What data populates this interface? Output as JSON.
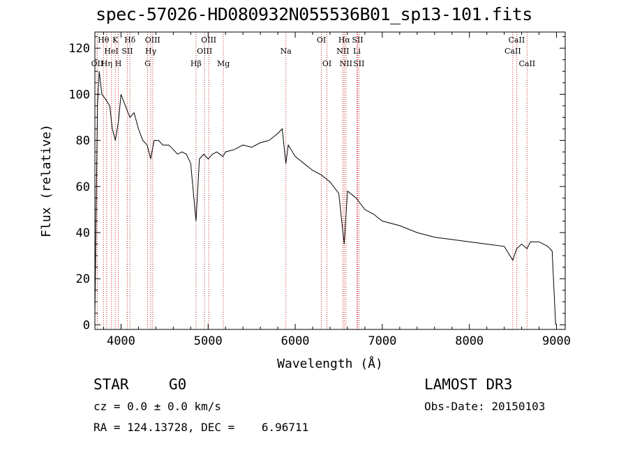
{
  "title": "spec-57026-HD080932N055536B01_sp13-101.fits",
  "info": {
    "class": "STAR",
    "subclass": "G0",
    "survey": "LAMOST DR3",
    "cz": "cz = 0.0 ± 0.0 km/s",
    "obs_date": "Obs-Date: 20150103",
    "radec": "RA = 124.13728, DEC =    6.96711"
  },
  "colors": {
    "line_marker": "#cc2222",
    "spectrum": "#000000",
    "axes": "#000000"
  },
  "chart_data": {
    "type": "line",
    "xlabel": "Wavelength (Å)",
    "ylabel": "Flux (relative)",
    "xlim": [
      3700,
      9100
    ],
    "ylim": [
      -2,
      127
    ],
    "xticks": [
      4000,
      5000,
      6000,
      7000,
      8000,
      9000
    ],
    "yticks": [
      0,
      20,
      40,
      60,
      80,
      100,
      120
    ],
    "grid": false,
    "series": [
      {
        "x": [
          3700,
          3730,
          3750,
          3780,
          3820,
          3870,
          3900,
          3935,
          3970,
          4000,
          4050,
          4101,
          4150,
          4200,
          4250,
          4300,
          4340,
          4380,
          4430,
          4480,
          4550,
          4600,
          4650,
          4700,
          4750,
          4800,
          4861,
          4900,
          4950,
          5000,
          5050,
          5100,
          5170,
          5200,
          5300,
          5400,
          5500,
          5600,
          5700,
          5800,
          5850,
          5893,
          5920,
          6000,
          6100,
          6200,
          6300,
          6400,
          6500,
          6563,
          6600,
          6700,
          6800,
          6900,
          7000,
          7200,
          7400,
          7600,
          7800,
          8000,
          8200,
          8400,
          8498,
          8542,
          8600,
          8662,
          8700,
          8800,
          8900,
          8950,
          8990
        ],
        "y": [
          5,
          95,
          110,
          100,
          98,
          95,
          85,
          80,
          88,
          100,
          95,
          90,
          92,
          85,
          80,
          78,
          72,
          80,
          80,
          78,
          78,
          76,
          74,
          75,
          74,
          70,
          45,
          72,
          74,
          72,
          74,
          75,
          73,
          75,
          76,
          78,
          77,
          79,
          80,
          83,
          85,
          70,
          78,
          73,
          70,
          67,
          65,
          62,
          57,
          35,
          58,
          55,
          50,
          48,
          45,
          43,
          40,
          38,
          37,
          36,
          35,
          34,
          28,
          33,
          35,
          33,
          36,
          36,
          34,
          32,
          0
        ]
      }
    ],
    "lines": [
      {
        "name": "OII",
        "wave": 3727,
        "row": 3
      },
      {
        "name": "Hθ",
        "wave": 3798,
        "row": 1
      },
      {
        "name": "Hη",
        "wave": 3835,
        "row": 3
      },
      {
        "name": "HeI",
        "wave": 3889,
        "row": 2
      },
      {
        "name": "K",
        "wave": 3934,
        "row": 1
      },
      {
        "name": "H",
        "wave": 3969,
        "row": 3
      },
      {
        "name": "SII",
        "wave": 4072,
        "row": 2
      },
      {
        "name": "Hδ",
        "wave": 4102,
        "row": 1
      },
      {
        "name": "G",
        "wave": 4305,
        "row": 3
      },
      {
        "name": "Hγ",
        "wave": 4341,
        "row": 2
      },
      {
        "name": "OIII",
        "wave": 4363,
        "row": 1
      },
      {
        "name": "Hβ",
        "wave": 4861,
        "row": 3
      },
      {
        "name": "OIII",
        "wave": 4959,
        "row": 2
      },
      {
        "name": "OIII",
        "wave": 5007,
        "row": 1
      },
      {
        "name": "Mg",
        "wave": 5175,
        "row": 3
      },
      {
        "name": "Na",
        "wave": 5893,
        "row": 2
      },
      {
        "name": "OI",
        "wave": 6300,
        "row": 1
      },
      {
        "name": "OI",
        "wave": 6364,
        "row": 3
      },
      {
        "name": "NII",
        "wave": 6548,
        "row": 2
      },
      {
        "name": "Hα",
        "wave": 6563,
        "row": 1
      },
      {
        "name": "NII",
        "wave": 6583,
        "row": 3
      },
      {
        "name": "Li",
        "wave": 6708,
        "row": 2
      },
      {
        "name": "SII",
        "wave": 6716,
        "row": 1
      },
      {
        "name": "SII",
        "wave": 6731,
        "row": 3
      },
      {
        "name": "CaII",
        "wave": 8498,
        "row": 2
      },
      {
        "name": "CaII",
        "wave": 8542,
        "row": 1
      },
      {
        "name": "CaII",
        "wave": 8662,
        "row": 3
      }
    ]
  }
}
